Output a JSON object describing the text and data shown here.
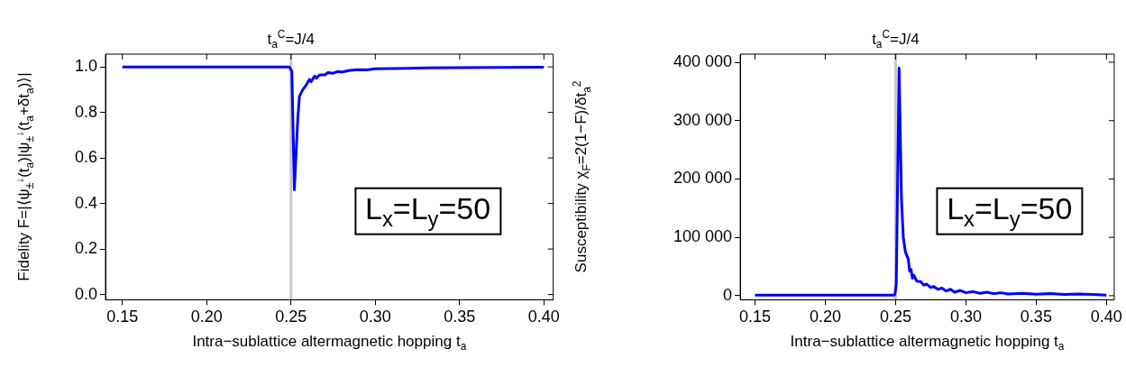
{
  "chart_data": [
    {
      "type": "line",
      "xlabel": "Intra−sublattice altermagnetic hopping t$_{a}$",
      "ylabel": "Fidelity F=|⟨ψ$_{±}$$^{↓}$(t$_{a}$)|ψ$_{±}$$^{↓}$(t$_{a}$+δt$_{a}$)⟩|",
      "series": [
        {
          "color": "#0000ff",
          "x": [
            0.15,
            0.2,
            0.249,
            0.2505,
            0.252,
            0.254,
            0.255,
            0.257,
            0.259,
            0.261,
            0.262,
            0.264,
            0.265,
            0.267,
            0.27,
            0.272,
            0.275,
            0.278,
            0.28,
            0.285,
            0.29,
            0.295,
            0.3,
            0.31,
            0.32,
            0.33,
            0.35,
            0.4
          ],
          "values": [
            1.0,
            1.0,
            1.0,
            0.98,
            0.46,
            0.77,
            0.87,
            0.9,
            0.92,
            0.945,
            0.935,
            0.96,
            0.95,
            0.965,
            0.965,
            0.975,
            0.972,
            0.98,
            0.977,
            0.985,
            0.988,
            0.987,
            0.992,
            0.993,
            0.994,
            0.996,
            0.997,
            0.999
          ]
        }
      ],
      "xlim": [
        0.14,
        0.4055
      ],
      "ylim": [
        -0.023,
        1.056
      ],
      "xticks": [
        0.15,
        {
          "value": 0.2,
          "label": "0.20"
        },
        0.25,
        {
          "value": 0.3,
          "label": "0.30"
        },
        0.35,
        {
          "value": 0.4,
          "label": "0.40"
        }
      ],
      "yticks": [
        {
          "value": 0,
          "label": "0.0"
        },
        0.2,
        0.4,
        0.6,
        0.8,
        {
          "value": 1,
          "label": "1.0"
        }
      ],
      "ref_lines": [
        {
          "axis": "x",
          "value": 0.25,
          "label": "t$_{a}$$^{C}$=J/4",
          "color": "#c8c8c8"
        }
      ],
      "annotations": [
        "L$_{x}$=L$_{y}$=50"
      ],
      "grid": false,
      "legend": false,
      "marker": "none",
      "line_style": "solid"
    },
    {
      "type": "line",
      "xlabel": "Intra−sublattice altermagnetic hopping t$_{a}$",
      "ylabel": "Susceptibility χ$_{F}$=2(1−F)/δt$_{a}$$^{2}$",
      "series": [
        {
          "color": "#0000ff",
          "x": [
            0.15,
            0.2,
            0.249,
            0.2495,
            0.2505,
            0.2525,
            0.2542,
            0.2555,
            0.257,
            0.259,
            0.26,
            0.261,
            0.262,
            0.263,
            0.265,
            0.268,
            0.27,
            0.272,
            0.275,
            0.277,
            0.28,
            0.283,
            0.286,
            0.289,
            0.292,
            0.296,
            0.3,
            0.305,
            0.31,
            0.315,
            0.32,
            0.325,
            0.33,
            0.34,
            0.35,
            0.36,
            0.37,
            0.38,
            0.39,
            0.4
          ],
          "values": [
            1000,
            1000,
            1000,
            2000,
            20000,
            390000,
            165000,
            100000,
            75000,
            63000,
            42000,
            45000,
            30000,
            35000,
            25000,
            24000,
            18000,
            20000,
            14000,
            16000,
            11000,
            13000,
            8000,
            11000,
            6000,
            9000,
            5000,
            7000,
            4000,
            6000,
            3500,
            5000,
            3000,
            4000,
            2500,
            3500,
            2000,
            3000,
            2000,
            1000
          ]
        }
      ],
      "xlim": [
        0.1395,
        0.4055
      ],
      "ylim": [
        -7000,
        414000
      ],
      "xticks": [
        0.15,
        {
          "value": 0.2,
          "label": "0.20"
        },
        0.25,
        {
          "value": 0.3,
          "label": "0.30"
        },
        0.35,
        {
          "value": 0.4,
          "label": "0.40"
        }
      ],
      "yticks": [
        0,
        {
          "value": 100000,
          "label": "100 000"
        },
        {
          "value": 200000,
          "label": "200 000"
        },
        {
          "value": 300000,
          "label": "300 000"
        },
        {
          "value": 400000,
          "label": "400 000"
        }
      ],
      "ref_lines": [
        {
          "axis": "x",
          "value": 0.25,
          "label": "t$_{a}$$^{C}$=J/4",
          "color": "#c8c8c8"
        }
      ],
      "annotations": [
        "L$_{x}$=L$_{y}$=50"
      ],
      "grid": false,
      "legend": false,
      "marker": "none",
      "line_style": "solid"
    }
  ]
}
